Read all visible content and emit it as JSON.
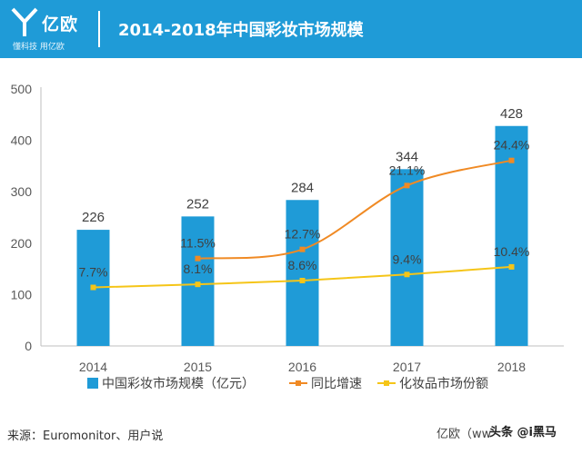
{
  "header": {
    "logo_text": "亿欧",
    "logo_sub": "懂科技 用亿欧",
    "title": "2014-2018年中国彩妆市场规模"
  },
  "chart_data": {
    "type": "bar",
    "categories": [
      "2014",
      "2015",
      "2016",
      "2017",
      "2018"
    ],
    "ylim": [
      0,
      500
    ],
    "yticks": [
      "0",
      "100",
      "200",
      "300",
      "400",
      "500"
    ],
    "series": [
      {
        "name": "中国彩妆市场规模（亿元）",
        "type": "bar",
        "color": "#1f9bd7",
        "values": [
          226,
          252,
          284,
          344,
          428
        ],
        "labels": [
          "226",
          "252",
          "284",
          "344",
          "428"
        ]
      },
      {
        "name": "同比增速",
        "type": "line",
        "color": "#f08a24",
        "values": [
          null,
          11.5,
          12.7,
          21.1,
          24.4
        ],
        "labels": [
          "",
          "11.5%",
          "12.7%",
          "21.1%",
          "24.4%"
        ]
      },
      {
        "name": "化妆品市场份额",
        "type": "line",
        "color": "#f5c518",
        "values": [
          7.7,
          8.1,
          8.6,
          9.4,
          10.4
        ],
        "labels": [
          "7.7%",
          "8.1%",
          "8.6%",
          "9.4%",
          "10.4%"
        ]
      }
    ],
    "legend": "bottom"
  },
  "footer": {
    "source": "来源：Euromonitor、用户说",
    "brand": "亿欧（ww",
    "watermark": "头条 @i黑马"
  }
}
